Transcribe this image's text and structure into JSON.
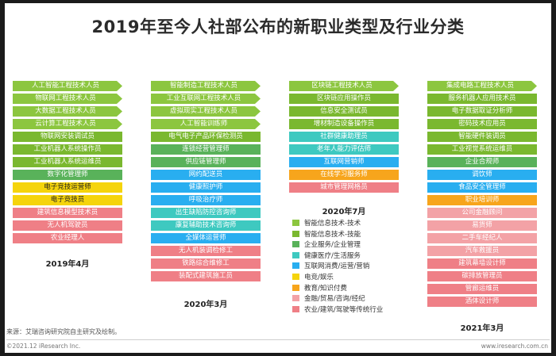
{
  "title": "2019年至今人社部公布的新职业类型及行业分类",
  "colors": {
    "tech_skill": "#8cc63f",
    "tech_skill_b": "#7ab82f",
    "enterprise": "#59b25a",
    "health": "#3ec9c0",
    "internet": "#29aef0",
    "esports": "#f5d40c",
    "education": "#f7a51c",
    "finance": "#f3a2a6",
    "traditional": "#ef7f86"
  },
  "columns": [
    {
      "period": "2019年4月",
      "tags": [
        {
          "label": "人工智能工程技术人员",
          "cat": "tech_skill",
          "arrow": true
        },
        {
          "label": "物联网工程技术人员",
          "cat": "tech_skill",
          "arrow": true
        },
        {
          "label": "大数据工程技术人员",
          "cat": "tech_skill",
          "arrow": true
        },
        {
          "label": "云计算工程技术人员",
          "cat": "tech_skill",
          "arrow": true
        },
        {
          "label": "物联网安装调试员",
          "cat": "tech_skill_b",
          "arrow": false
        },
        {
          "label": "工业机器人系统操作员",
          "cat": "tech_skill_b",
          "arrow": false
        },
        {
          "label": "工业机器人系统运维员",
          "cat": "tech_skill_b",
          "arrow": false
        },
        {
          "label": "数字化管理师",
          "cat": "enterprise",
          "arrow": false
        },
        {
          "label": "电子竞技运营师",
          "cat": "esports",
          "arrow": false
        },
        {
          "label": "电子竞技员",
          "cat": "esports",
          "arrow": false
        },
        {
          "label": "建筑信息模型技术员",
          "cat": "traditional",
          "arrow": false
        },
        {
          "label": "无人机驾驶员",
          "cat": "traditional",
          "arrow": false
        },
        {
          "label": "农业经理人",
          "cat": "traditional",
          "arrow": false
        }
      ]
    },
    {
      "period": "2020年3月",
      "tags": [
        {
          "label": "智能制造工程技术人员",
          "cat": "tech_skill",
          "arrow": true
        },
        {
          "label": "工业互联网工程技术人员",
          "cat": "tech_skill",
          "arrow": true
        },
        {
          "label": "虚拟现实工程技术人员",
          "cat": "tech_skill",
          "arrow": true
        },
        {
          "label": "人工智能训练师",
          "cat": "tech_skill",
          "arrow": true
        },
        {
          "label": "电气电子产品环保检测员",
          "cat": "tech_skill_b",
          "arrow": false
        },
        {
          "label": "连锁经营管理师",
          "cat": "enterprise",
          "arrow": false
        },
        {
          "label": "供应链管理师",
          "cat": "enterprise",
          "arrow": false
        },
        {
          "label": "网约配送员",
          "cat": "internet",
          "arrow": false
        },
        {
          "label": "健康照护师",
          "cat": "internet",
          "arrow": false
        },
        {
          "label": "呼吸治疗师",
          "cat": "internet",
          "arrow": false
        },
        {
          "label": "出生缺陷防控咨询师",
          "cat": "health",
          "arrow": false
        },
        {
          "label": "康复辅助技术咨询师",
          "cat": "health",
          "arrow": false
        },
        {
          "label": "全媒体运营师",
          "cat": "internet",
          "arrow": false
        },
        {
          "label": "无人机装调检修工",
          "cat": "traditional",
          "arrow": false
        },
        {
          "label": "铁路综合维修工",
          "cat": "traditional",
          "arrow": false
        },
        {
          "label": "装配式建筑施工员",
          "cat": "traditional",
          "arrow": false
        }
      ]
    },
    {
      "period": "2020年7月",
      "tags": [
        {
          "label": "区块链工程技术人员",
          "cat": "tech_skill",
          "arrow": true
        },
        {
          "label": "区块链应用操作员",
          "cat": "tech_skill_b",
          "arrow": false
        },
        {
          "label": "信息安全测试员",
          "cat": "tech_skill_b",
          "arrow": false
        },
        {
          "label": "增材制造设备操作员",
          "cat": "tech_skill_b",
          "arrow": false
        },
        {
          "label": "社群健康助理员",
          "cat": "health",
          "arrow": false
        },
        {
          "label": "老年人能力评估师",
          "cat": "health",
          "arrow": false
        },
        {
          "label": "互联网营销师",
          "cat": "internet",
          "arrow": false
        },
        {
          "label": "在线学习服务师",
          "cat": "education",
          "arrow": false
        },
        {
          "label": "城市管理网格员",
          "cat": "traditional",
          "arrow": false
        }
      ]
    },
    {
      "period": "2021年3月",
      "tags": [
        {
          "label": "集成电路工程技术人员",
          "cat": "tech_skill",
          "arrow": true
        },
        {
          "label": "服务机器人应用技术员",
          "cat": "tech_skill_b",
          "arrow": false
        },
        {
          "label": "电子数据取证分析师",
          "cat": "tech_skill_b",
          "arrow": false
        },
        {
          "label": "密码技术应用员",
          "cat": "tech_skill_b",
          "arrow": false
        },
        {
          "label": "智能硬件装调员",
          "cat": "tech_skill_b",
          "arrow": false
        },
        {
          "label": "工业视觉系统运维员",
          "cat": "tech_skill_b",
          "arrow": false
        },
        {
          "label": "企业合规师",
          "cat": "enterprise",
          "arrow": false
        },
        {
          "label": "调饮师",
          "cat": "internet",
          "arrow": false
        },
        {
          "label": "食品安全管理师",
          "cat": "internet",
          "arrow": false
        },
        {
          "label": "职业培训师",
          "cat": "education",
          "arrow": false
        },
        {
          "label": "公司金融顾问",
          "cat": "finance",
          "arrow": false
        },
        {
          "label": "易货师",
          "cat": "finance",
          "arrow": false
        },
        {
          "label": "二手车经纪人",
          "cat": "finance",
          "arrow": false
        },
        {
          "label": "汽车救援员",
          "cat": "finance",
          "arrow": false
        },
        {
          "label": "建筑幕墙设计师",
          "cat": "traditional",
          "arrow": false
        },
        {
          "label": "碳排放管理员",
          "cat": "traditional",
          "arrow": false
        },
        {
          "label": "管廊运维员",
          "cat": "traditional",
          "arrow": false
        },
        {
          "label": "酒体设计师",
          "cat": "traditional",
          "arrow": false
        }
      ]
    }
  ],
  "legend": [
    {
      "label": "智能信息技术-技术",
      "cat": "tech_skill"
    },
    {
      "label": "智能信息技术-技能",
      "cat": "tech_skill_b"
    },
    {
      "label": "企业服务/企业管理",
      "cat": "enterprise"
    },
    {
      "label": "健康医疗/生活服务",
      "cat": "health"
    },
    {
      "label": "互联网消费/运营/营销",
      "cat": "internet"
    },
    {
      "label": "电竞/娱乐",
      "cat": "esports"
    },
    {
      "label": "教育/知识付费",
      "cat": "education"
    },
    {
      "label": "金融/贸易/咨询/经纪",
      "cat": "finance"
    },
    {
      "label": "农业/建筑/驾驶等传统行业",
      "cat": "traditional"
    }
  ],
  "source": "来源：艾瑞咨询研究院自主研究及绘制。",
  "copyright": "©2021.12 iResearch Inc.",
  "site": "www.iresearch.com.cn"
}
